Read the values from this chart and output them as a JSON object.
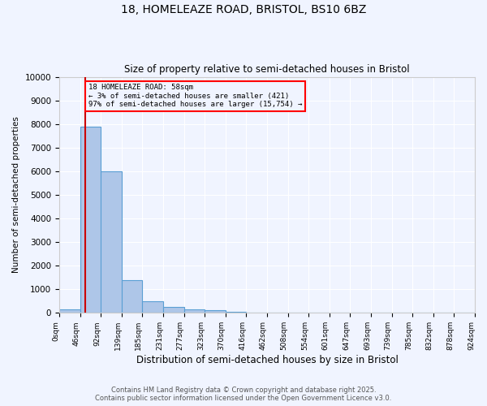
{
  "title_line1": "18, HOMELEAZE ROAD, BRISTOL, BS10 6BZ",
  "title_line2": "Size of property relative to semi-detached houses in Bristol",
  "xlabel": "Distribution of semi-detached houses by size in Bristol",
  "ylabel": "Number of semi-detached properties",
  "bin_labels": [
    "0sqm",
    "46sqm",
    "92sqm",
    "139sqm",
    "185sqm",
    "231sqm",
    "277sqm",
    "323sqm",
    "370sqm",
    "416sqm",
    "462sqm",
    "508sqm",
    "554sqm",
    "601sqm",
    "647sqm",
    "693sqm",
    "739sqm",
    "785sqm",
    "832sqm",
    "878sqm",
    "924sqm"
  ],
  "bar_values": [
    150,
    7900,
    6000,
    1400,
    500,
    250,
    150,
    100,
    50,
    5,
    2,
    1,
    0,
    0,
    0,
    0,
    0,
    0,
    0,
    0
  ],
  "bar_color": "#aec6e8",
  "bar_edgecolor": "#5a9fd4",
  "property_size": 58,
  "annotation_text": "18 HOMELEAZE ROAD: 58sqm\n← 3% of semi-detached houses are smaller (421)\n97% of semi-detached houses are larger (15,754) →",
  "annotation_box_color": "#ff0000",
  "vline_color": "#cc0000",
  "ylim": [
    0,
    10000
  ],
  "yticks": [
    0,
    1000,
    2000,
    3000,
    4000,
    5000,
    6000,
    7000,
    8000,
    9000,
    10000
  ],
  "background_color": "#f0f4ff",
  "grid_color": "#ffffff",
  "footer_line1": "Contains HM Land Registry data © Crown copyright and database right 2025.",
  "footer_line2": "Contains public sector information licensed under the Open Government Licence v3.0."
}
